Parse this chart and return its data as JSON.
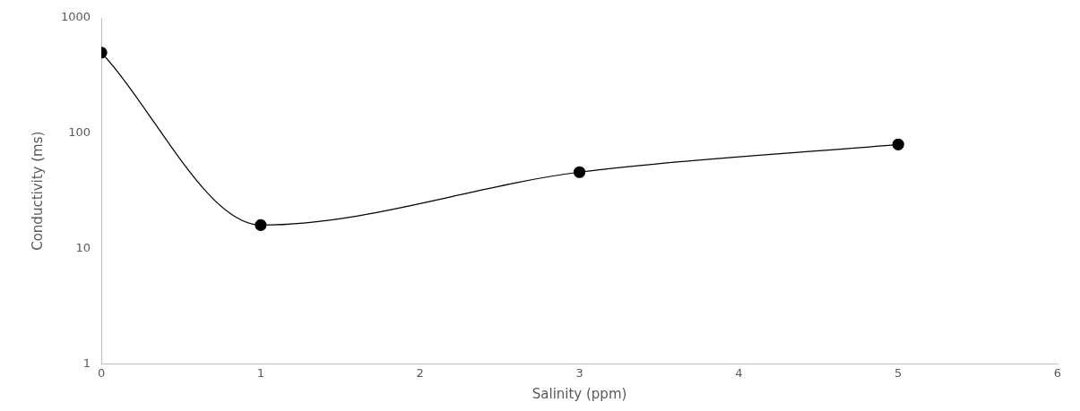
{
  "chart_data": {
    "type": "line",
    "xlabel": "Salinity (ppm)",
    "ylabel": "Conductivity (ms)",
    "x": [
      0,
      1,
      3,
      5
    ],
    "series": [
      {
        "color": "#000000",
        "values": [
          500,
          16,
          46,
          80
        ]
      }
    ],
    "xlim": [
      0,
      6
    ],
    "xticks": [
      0,
      1,
      2,
      3,
      4,
      5,
      6
    ],
    "ylim": [
      1,
      1000
    ],
    "yticks": [
      1,
      10,
      100,
      1000
    ],
    "log": "y",
    "grid": false,
    "legend": false,
    "marker": "circle",
    "line_style": "solid"
  }
}
